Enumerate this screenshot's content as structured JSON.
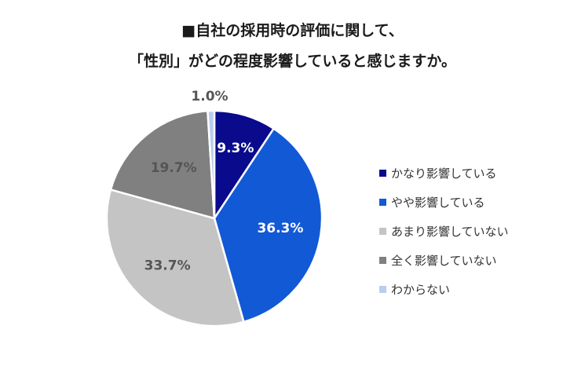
{
  "title": {
    "line1": "■自社の採用時の評価に関して、",
    "line2": "「性別」がどの程度影響していると感じますか。"
  },
  "chart_data": {
    "type": "pie",
    "categories": [
      "かなり影響している",
      "やや影響している",
      "あまり影響していない",
      "全く影響していない",
      "わからない"
    ],
    "values": [
      9.3,
      36.3,
      33.7,
      19.7,
      1.0
    ],
    "labels": [
      "9.3%",
      "36.3%",
      "33.7%",
      "19.7%",
      "1.0%"
    ],
    "colors": [
      "#0a0a8c",
      "#1259d6",
      "#c4c4c4",
      "#808080",
      "#b9cdee"
    ],
    "label_colors": [
      "#ffffff",
      "#ffffff",
      "#555555",
      "#555555",
      "#555555"
    ],
    "legend_position": "right"
  }
}
